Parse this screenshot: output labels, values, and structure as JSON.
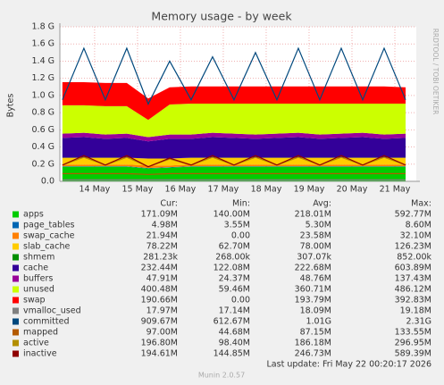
{
  "chart_data": {
    "type": "area",
    "title": "Memory usage - by week",
    "y_label": "Bytes",
    "side_text": "RRDTOOL / TOBI OETIKER",
    "x": [
      13.25,
      13.75,
      14.25,
      14.75,
      15.25,
      15.75,
      16.25,
      16.75,
      17.25,
      17.75,
      18.25,
      18.75,
      19.25,
      19.75,
      20.25,
      20.75,
      21.25
    ],
    "xlim": [
      13.19,
      21.5
    ],
    "xticks": [
      {
        "value": 14,
        "label": "14 May"
      },
      {
        "value": 15,
        "label": "15 May"
      },
      {
        "value": 16,
        "label": "16 May"
      },
      {
        "value": 17,
        "label": "17 May"
      },
      {
        "value": 18,
        "label": "18 May"
      },
      {
        "value": 19,
        "label": "19 May"
      },
      {
        "value": 20,
        "label": "20 May"
      },
      {
        "value": 21,
        "label": "21 May"
      }
    ],
    "ylim": [
      0,
      1.8
    ],
    "yticks": [
      {
        "value": 0,
        "label": "0.0"
      },
      {
        "value": 0.2,
        "label": "0.2 G"
      },
      {
        "value": 0.4,
        "label": "0.4 G"
      },
      {
        "value": 0.6,
        "label": "0.6 G"
      },
      {
        "value": 0.8,
        "label": "0.8 G"
      },
      {
        "value": 1.0,
        "label": "1.0 G"
      },
      {
        "value": 1.2,
        "label": "1.2 G"
      },
      {
        "value": 1.4,
        "label": "1.4 G"
      },
      {
        "value": 1.6,
        "label": "1.6 G"
      },
      {
        "value": 1.8,
        "label": "1.8 G"
      }
    ],
    "grid": true,
    "stats_columns": [
      "Cur:",
      "Min:",
      "Avg:",
      "Max:"
    ],
    "series": [
      {
        "name": "apps",
        "color": "#00cc00",
        "stacked": true,
        "values": [
          0.17,
          0.17,
          0.17,
          0.17,
          0.15,
          0.16,
          0.17,
          0.17,
          0.17,
          0.17,
          0.17,
          0.17,
          0.17,
          0.17,
          0.17,
          0.17,
          0.17
        ],
        "stats": [
          "171.09M",
          "140.00M",
          "218.01M",
          "592.77M"
        ]
      },
      {
        "name": "page_tables",
        "color": "#0066b3",
        "stacked": true,
        "values": [
          0.005,
          0.005,
          0.005,
          0.005,
          0.005,
          0.005,
          0.005,
          0.005,
          0.005,
          0.005,
          0.005,
          0.005,
          0.005,
          0.005,
          0.005,
          0.005,
          0.005
        ],
        "stats": [
          "4.98M",
          "3.55M",
          "5.30M",
          "8.60M"
        ]
      },
      {
        "name": "swap_cache",
        "color": "#ff8000",
        "stacked": true,
        "values": [
          0.02,
          0.02,
          0.02,
          0.02,
          0.03,
          0.02,
          0.02,
          0.02,
          0.02,
          0.02,
          0.02,
          0.02,
          0.02,
          0.02,
          0.02,
          0.02,
          0.02
        ],
        "stats": [
          "21.94M",
          "0.00",
          "23.58M",
          "32.10M"
        ]
      },
      {
        "name": "slab_cache",
        "color": "#ffcc00",
        "stacked": true,
        "values": [
          0.08,
          0.08,
          0.08,
          0.08,
          0.08,
          0.08,
          0.08,
          0.08,
          0.08,
          0.08,
          0.08,
          0.08,
          0.08,
          0.08,
          0.08,
          0.08,
          0.08
        ],
        "stats": [
          "78.22M",
          "62.70M",
          "78.00M",
          "126.23M"
        ]
      },
      {
        "name": "shmem",
        "color": "#008f00",
        "stacked": true,
        "values": [
          0.0003,
          0.0003,
          0.0003,
          0.0003,
          0.0003,
          0.0003,
          0.0003,
          0.0003,
          0.0003,
          0.0003,
          0.0003,
          0.0003,
          0.0003,
          0.0003,
          0.0003,
          0.0003,
          0.0003
        ],
        "stats": [
          "281.23k",
          "268.00k",
          "307.07k",
          "852.00k"
        ]
      },
      {
        "name": "cache",
        "color": "#330099",
        "stacked": true,
        "values": [
          0.23,
          0.24,
          0.22,
          0.23,
          0.2,
          0.23,
          0.22,
          0.24,
          0.23,
          0.22,
          0.23,
          0.24,
          0.22,
          0.23,
          0.24,
          0.22,
          0.23
        ],
        "stats": [
          "232.44M",
          "122.08M",
          "222.68M",
          "603.89M"
        ]
      },
      {
        "name": "buffers",
        "color": "#990099",
        "stacked": true,
        "values": [
          0.05,
          0.05,
          0.05,
          0.05,
          0.05,
          0.05,
          0.05,
          0.05,
          0.05,
          0.05,
          0.05,
          0.05,
          0.05,
          0.05,
          0.05,
          0.05,
          0.05
        ],
        "stats": [
          "47.91M",
          "24.37M",
          "48.76M",
          "137.43M"
        ]
      },
      {
        "name": "unused",
        "color": "#ccff00",
        "stacked": true,
        "values": [
          0.33,
          0.32,
          0.33,
          0.32,
          0.2,
          0.35,
          0.36,
          0.34,
          0.35,
          0.36,
          0.35,
          0.34,
          0.36,
          0.35,
          0.34,
          0.36,
          0.35
        ],
        "stats": [
          "400.48M",
          "59.46M",
          "360.71M",
          "486.12M"
        ]
      },
      {
        "name": "swap",
        "color": "#ff0000",
        "stacked": true,
        "values": [
          0.27,
          0.27,
          0.27,
          0.27,
          0.25,
          0.2,
          0.2,
          0.2,
          0.2,
          0.2,
          0.2,
          0.2,
          0.2,
          0.2,
          0.2,
          0.2,
          0.19
        ],
        "stats": [
          "190.66M",
          "0.00",
          "193.79M",
          "392.83M"
        ]
      },
      {
        "name": "vmalloc_used",
        "color": "#808080",
        "stacked": false,
        "values": [
          0.018,
          0.018,
          0.018,
          0.018,
          0.018,
          0.018,
          0.018,
          0.018,
          0.018,
          0.018,
          0.018,
          0.018,
          0.018,
          0.018,
          0.018,
          0.018,
          0.018
        ],
        "stats": [
          "17.97M",
          "17.14M",
          "18.09M",
          "19.18M"
        ]
      },
      {
        "name": "committed",
        "color": "#00487d",
        "stacked": false,
        "values": [
          0.95,
          1.55,
          0.95,
          1.55,
          0.9,
          1.4,
          0.95,
          1.45,
          0.95,
          1.5,
          0.95,
          1.55,
          0.95,
          1.55,
          0.95,
          1.55,
          0.95
        ],
        "stats": [
          "909.67M",
          "612.67M",
          "1.01G",
          "2.31G"
        ]
      },
      {
        "name": "mapped",
        "color": "#b35a00",
        "stacked": false,
        "values": [
          0.09,
          0.09,
          0.09,
          0.09,
          0.08,
          0.09,
          0.09,
          0.09,
          0.09,
          0.09,
          0.09,
          0.09,
          0.09,
          0.09,
          0.09,
          0.09,
          0.09
        ],
        "stats": [
          "97.00M",
          "44.68M",
          "87.15M",
          "133.55M"
        ]
      },
      {
        "name": "active",
        "color": "#b38f00",
        "stacked": false,
        "values": [
          0.19,
          0.28,
          0.19,
          0.28,
          0.17,
          0.26,
          0.19,
          0.28,
          0.19,
          0.28,
          0.19,
          0.28,
          0.19,
          0.28,
          0.19,
          0.28,
          0.19
        ],
        "stats": [
          "196.80M",
          "98.40M",
          "186.18M",
          "296.95M"
        ]
      },
      {
        "name": "inactive",
        "color": "#8f0000",
        "stacked": false,
        "values": [
          0.19,
          0.3,
          0.19,
          0.3,
          0.17,
          0.27,
          0.19,
          0.3,
          0.19,
          0.3,
          0.19,
          0.3,
          0.19,
          0.3,
          0.19,
          0.3,
          0.19
        ],
        "stats": [
          "194.61M",
          "144.85M",
          "246.73M",
          "589.39M"
        ]
      }
    ],
    "last_update": "Last update: Fri May 22 00:20:17 2026",
    "footer": "Munin 2.0.57"
  }
}
